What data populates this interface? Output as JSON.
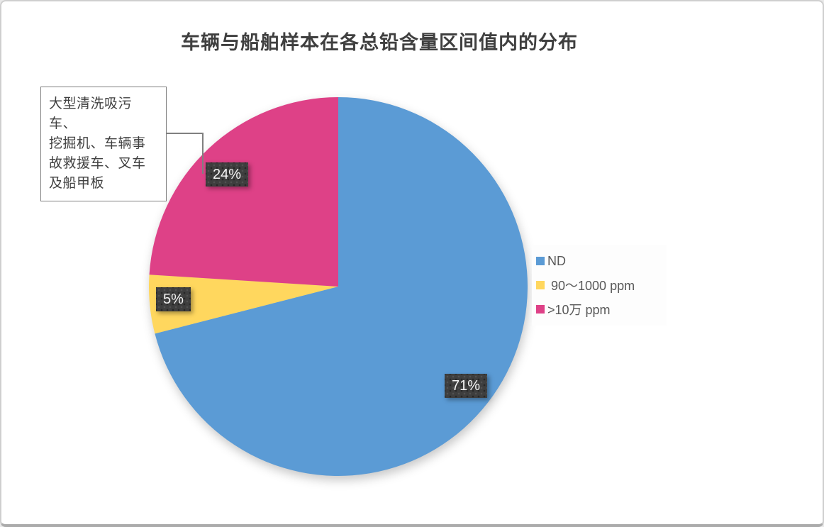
{
  "chart_data": {
    "type": "pie",
    "title": "车辆与船舶样本在各总铅含量区间值内的分布",
    "categories": [
      "ND",
      "90～1000 ppm",
      ">10万 ppm"
    ],
    "values": [
      71,
      5,
      24
    ],
    "value_unit": "percent",
    "colors": [
      "#5B9BD5",
      "#FFD75E",
      "#DE4187"
    ],
    "data_labels": [
      "71%",
      "5%",
      "24%"
    ],
    "data_label_style": {
      "background": "#3E3E3E",
      "text_color": "#FFFFFF"
    },
    "start_angle_deg": 0,
    "direction": "clockwise",
    "grid": false,
    "legend": {
      "position": "right",
      "background": "#FDFDFD",
      "entries": [
        {
          "label": "ND",
          "color": "#5B9BD5"
        },
        {
          "label": " 90～1000 ppm",
          "color": "#FFD75E"
        },
        {
          "label": ">10万 ppm",
          "color": "#DE4187"
        }
      ]
    },
    "annotation": {
      "text": "大型清洗吸污车、\n挖掘机、车辆事\n故救援车、叉车\n及船甲板",
      "attached_to_label": "24%",
      "border_color": "#7F7F7F"
    }
  }
}
